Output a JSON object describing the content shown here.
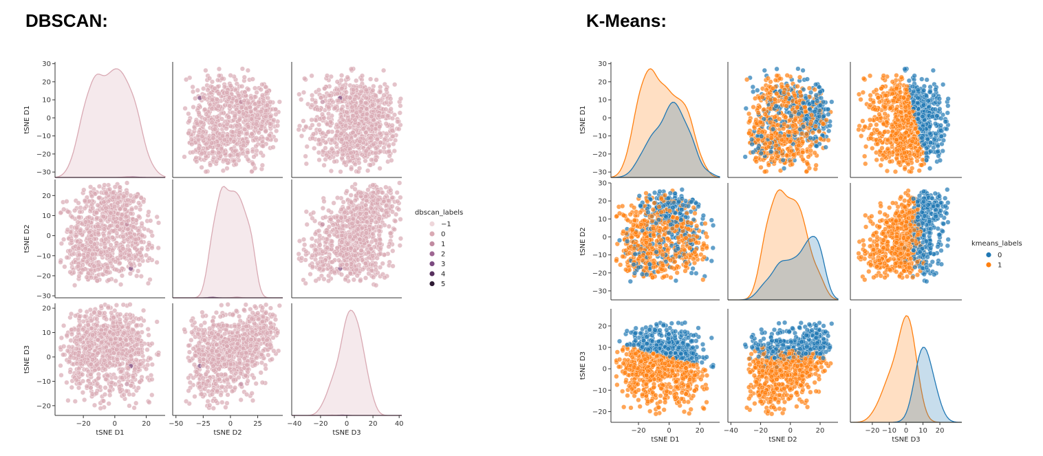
{
  "panels": [
    {
      "title": "DBSCAN:"
    },
    {
      "title": "K-Means:"
    }
  ],
  "chart_data": [
    {
      "type": "scatter",
      "subtype": "pairplot",
      "variables": [
        "tSNE D1",
        "tSNE D2",
        "tSNE D3"
      ],
      "hue": "dbscan_labels",
      "legend": {
        "title": "dbscan_labels",
        "position": "right",
        "entries": [
          {
            "label": "−1",
            "color": "#eed6da"
          },
          {
            "label": "0",
            "color": "#d9a9b3"
          },
          {
            "label": "1",
            "color": "#c08aa0"
          },
          {
            "label": "2",
            "color": "#9e6692"
          },
          {
            "label": "3",
            "color": "#7b4a80"
          },
          {
            "label": "4",
            "color": "#57305e"
          },
          {
            "label": "5",
            "color": "#2d1a33"
          }
        ]
      },
      "axes": {
        "tSNE D1": {
          "range": [
            -33,
            31
          ],
          "ticks": [
            -30,
            -20,
            -10,
            0,
            10,
            20,
            30
          ],
          "tick_labels": [
            "−30",
            "−20",
            "−10",
            "0",
            "10",
            "20",
            "30"
          ]
        },
        "tSNE D2": {
          "range": [
            -31,
            28
          ],
          "ticks": [
            -30,
            -20,
            -10,
            0,
            10,
            20
          ],
          "tick_labels": [
            "−30",
            "−20",
            "−10",
            "0",
            "10",
            "20"
          ]
        },
        "tSNE D3": {
          "range": [
            -24,
            22
          ],
          "ticks": [
            -20,
            -10,
            0,
            10,
            20
          ],
          "tick_labels": [
            "−20",
            "−10",
            "0",
            "10",
            "20"
          ]
        }
      },
      "diag_ticks": [
        {
          "range": [
            -38,
            32
          ],
          "ticks": [
            -20,
            0,
            20
          ],
          "tick_labels": [
            "−20",
            "0",
            "20"
          ]
        },
        {
          "range": [
            -53,
            48
          ],
          "ticks": [
            -50,
            -25,
            0,
            25
          ],
          "tick_labels": [
            "−50",
            "−25",
            "0",
            "25"
          ]
        },
        {
          "range": [
            -42,
            42
          ],
          "ticks": [
            -40,
            -20,
            0,
            20,
            40
          ],
          "tick_labels": [
            "−40",
            "−20",
            "0",
            "20",
            "40"
          ]
        }
      ],
      "clusters": [
        {
          "label": "3",
          "D1": 16,
          "D2": -19,
          "D3": -5,
          "s1": 4,
          "s2": 4,
          "s3": 4
        },
        {
          "label": "4",
          "D1": 22,
          "D2": -16,
          "D3": 19,
          "s1": 3,
          "s2": 3,
          "s3": 2
        },
        {
          "label": "2",
          "D1": 0,
          "D2": -17,
          "D3": 12,
          "s1": 2,
          "s2": 2,
          "s3": 2
        },
        {
          "label": "1",
          "D1": 8,
          "D2": 6,
          "D3": -14,
          "s1": 2,
          "s2": 2,
          "s3": 2
        },
        {
          "label": "5",
          "D1": -2,
          "D2": -12,
          "D3": -18,
          "s1": 1,
          "s2": 1,
          "s3": 1
        }
      ]
    },
    {
      "type": "scatter",
      "subtype": "pairplot",
      "variables": [
        "tSNE D1",
        "tSNE D2",
        "tSNE D3"
      ],
      "hue": "kmeans_labels",
      "legend": {
        "title": "kmeans_labels",
        "position": "right",
        "entries": [
          {
            "label": "0",
            "color": "#1f77b4"
          },
          {
            "label": "1",
            "color": "#ff7f0e"
          }
        ]
      },
      "axes": {
        "tSNE D1": {
          "range": [
            -33,
            31
          ],
          "ticks": [
            -30,
            -20,
            -10,
            0,
            10,
            20,
            30
          ],
          "tick_labels": [
            "−30",
            "−20",
            "−10",
            "0",
            "10",
            "20",
            "30"
          ]
        },
        "tSNE D2": {
          "range": [
            -35,
            30
          ],
          "ticks": [
            -30,
            -20,
            -10,
            0,
            10,
            20,
            30
          ],
          "tick_labels": [
            "−30",
            "−20",
            "−10",
            "0",
            "10",
            "20",
            "30"
          ]
        },
        "tSNE D3": {
          "range": [
            -25,
            28
          ],
          "ticks": [
            -20,
            -10,
            0,
            10,
            20
          ],
          "tick_labels": [
            "−20",
            "−10",
            "0",
            "10",
            "20"
          ]
        }
      },
      "diag_ticks": [
        {
          "range": [
            -38,
            33
          ],
          "ticks": [
            -20,
            0,
            20
          ],
          "tick_labels": [
            "−20",
            "0",
            "20"
          ]
        },
        {
          "range": [
            -42,
            32
          ],
          "ticks": [
            -40,
            -20,
            0,
            20
          ],
          "tick_labels": [
            "−40",
            "−20",
            "0",
            "20"
          ]
        },
        {
          "range": [
            -33,
            33
          ],
          "ticks": [
            -20,
            -10,
            0,
            10,
            20
          ],
          "tick_labels": [
            "−20",
            "−10",
            "0",
            "10",
            "20"
          ]
        }
      ]
    }
  ]
}
